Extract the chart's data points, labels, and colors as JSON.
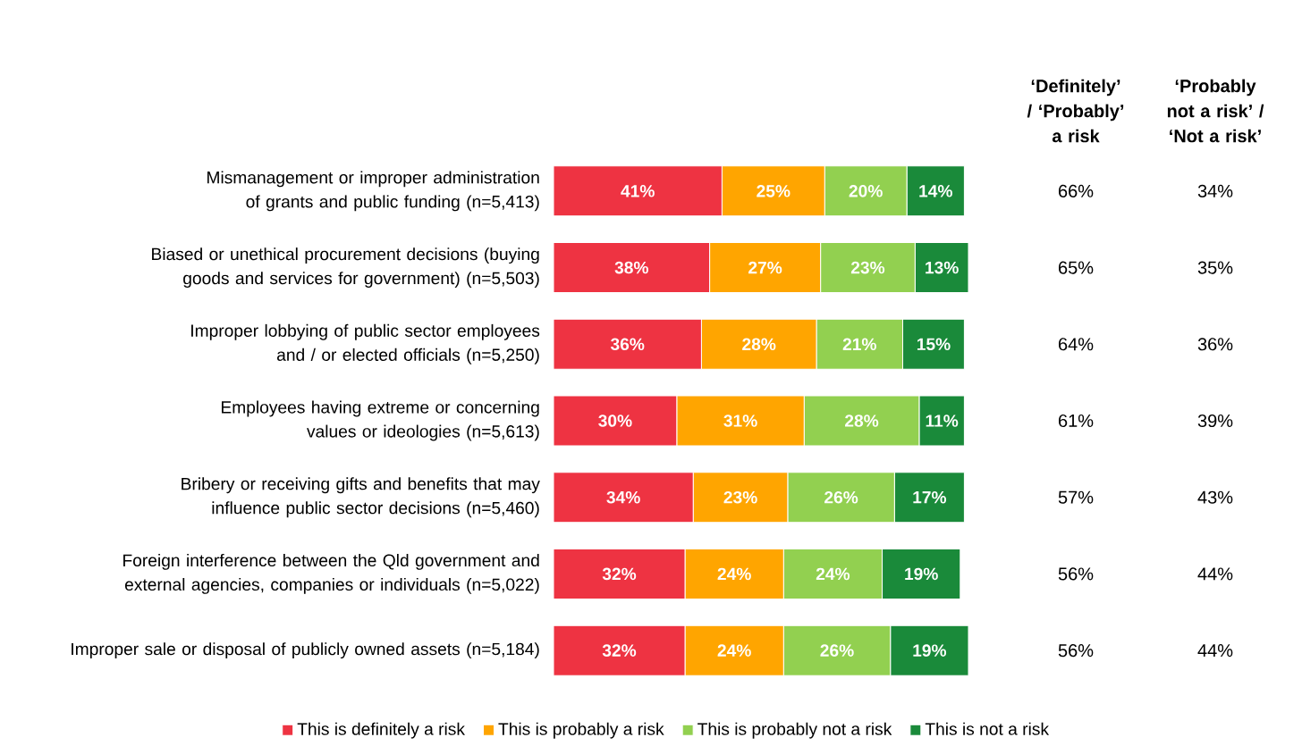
{
  "chart_data": {
    "type": "bar",
    "orientation": "horizontal",
    "stacked": true,
    "legend": "bottom",
    "xlim": [
      0,
      101
    ],
    "categories": [
      "Mismanagement or improper administration of grants and public funding (n=5,413)",
      "Biased or unethical procurement decisions (buying goods and services for government) (n=5,503)",
      "Improper lobbying of public sector employees and / or elected officials (n=5,250)",
      "Employees having extreme or concerning values or ideologies (n=5,613)",
      "Bribery or receiving gifts and benefits that may influence public sector decisions (n=5,460)",
      "Foreign interference between the Qld government and external agencies, companies or individuals (n=5,022)",
      "Improper sale or disposal of publicly owned assets (n=5,184)"
    ],
    "series": [
      {
        "name": "This is definitely a risk",
        "color": "#ee3342",
        "values": [
          41,
          38,
          36,
          30,
          34,
          32,
          32
        ],
        "value_labels": [
          "41%",
          "38%",
          "36%",
          "30%",
          "34%",
          "32%",
          "32%"
        ]
      },
      {
        "name": "This is probably a risk",
        "color": "#ffa500",
        "values": [
          25,
          27,
          28,
          31,
          23,
          24,
          24
        ],
        "value_labels": [
          "25%",
          "27%",
          "28%",
          "31%",
          "23%",
          "24%",
          "24%"
        ]
      },
      {
        "name": "This is probably not a risk",
        "color": "#92d050",
        "values": [
          20,
          23,
          21,
          28,
          26,
          24,
          26
        ],
        "value_labels": [
          "20%",
          "23%",
          "21%",
          "28%",
          "26%",
          "24%",
          "26%"
        ]
      },
      {
        "name": "This is not a risk",
        "color": "#1a8a3a",
        "values": [
          14,
          13,
          15,
          11,
          17,
          19,
          19
        ],
        "value_labels": [
          "14%",
          "13%",
          "15%",
          "11%",
          "17%",
          "19%",
          "19%"
        ]
      }
    ],
    "annotations": [
      "‘Definitely’ / ‘Probably’ a risk",
      "‘Probably not a risk’ / ‘Not a risk’",
      "66%",
      "34%",
      "65%",
      "35%",
      "64%",
      "36%",
      "61%",
      "39%",
      "57%",
      "43%",
      "56%",
      "44%",
      "56%",
      "44%"
    ]
  }
}
